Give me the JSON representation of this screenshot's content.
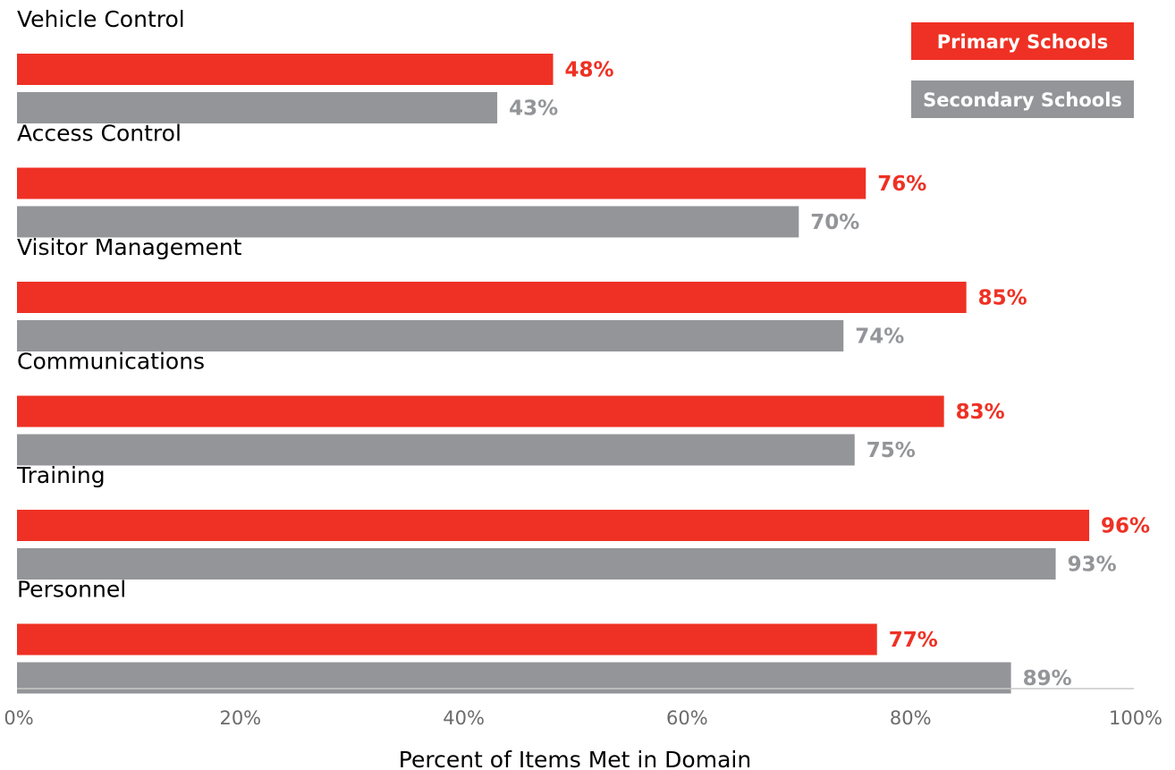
{
  "chart_data": {
    "type": "bar",
    "orientation": "horizontal",
    "categories": [
      "Vehicle Control",
      "Access Control",
      "Visitor Management",
      "Communications",
      "Training",
      "Personnel"
    ],
    "series": [
      {
        "name": "Primary Schools",
        "color": "#ee3124",
        "values": [
          48,
          76,
          85,
          83,
          96,
          77
        ],
        "labels": [
          "48%",
          "76%",
          "85%",
          "83%",
          "96%",
          "77%"
        ]
      },
      {
        "name": "Secondary Schools",
        "color": "#939598",
        "values": [
          43,
          70,
          74,
          75,
          93,
          89
        ],
        "labels": [
          "43%",
          "70%",
          "74%",
          "75%",
          "93%",
          "89%"
        ]
      }
    ],
    "xlabel": "Percent of Items Met in Domain",
    "xlim": [
      0,
      100
    ],
    "ticks": [
      0,
      20,
      40,
      60,
      80,
      100
    ],
    "tick_labels": [
      "0%",
      "20%",
      "40%",
      "60%",
      "80%",
      "100%"
    ],
    "legend_position": "top-right",
    "grid": false
  }
}
